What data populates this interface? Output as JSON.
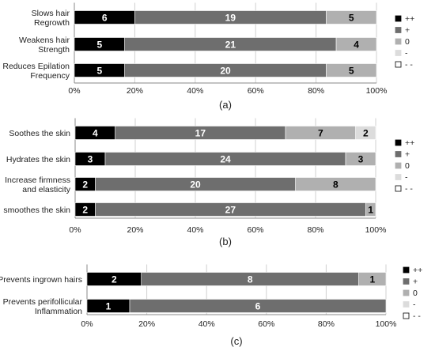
{
  "chart_data": [
    {
      "type": "bar",
      "orientation": "horizontal",
      "stacked": "percent",
      "panel_label": "(a)",
      "categories": [
        [
          "Slows hair",
          "Regrowth"
        ],
        [
          "Weakens hair",
          "Strength"
        ],
        [
          "Reduces Epilation",
          "Frequency"
        ]
      ],
      "series": [
        {
          "name": "++",
          "color": "#000000",
          "values": [
            6,
            5,
            5
          ]
        },
        {
          "name": "+",
          "color": "#6e6e6e",
          "values": [
            19,
            21,
            20
          ]
        },
        {
          "name": "0",
          "color": "#b0b0b0",
          "values": [
            5,
            4,
            5
          ]
        },
        {
          "name": "-",
          "color": "#dcdcdc",
          "values": [
            0,
            0,
            0
          ]
        },
        {
          "name": "- -",
          "color": "#ffffff",
          "values": [
            0,
            0,
            0
          ]
        }
      ],
      "xticks": [
        "0%",
        "20%",
        "40%",
        "60%",
        "80%",
        "100%"
      ],
      "xlim": [
        0,
        100
      ],
      "grid": "vertical",
      "legend": "right"
    },
    {
      "type": "bar",
      "orientation": "horizontal",
      "stacked": "percent",
      "panel_label": "(b)",
      "categories": [
        [
          "Soothes the skin"
        ],
        [
          "Hydrates the skin"
        ],
        [
          "Increase firmness",
          "and elasticity"
        ],
        [
          "smoothes the skin"
        ]
      ],
      "series": [
        {
          "name": "++",
          "color": "#000000",
          "values": [
            4,
            3,
            2,
            2
          ]
        },
        {
          "name": "+",
          "color": "#6e6e6e",
          "values": [
            17,
            24,
            20,
            27
          ]
        },
        {
          "name": "0",
          "color": "#b0b0b0",
          "values": [
            7,
            3,
            8,
            1
          ]
        },
        {
          "name": "-",
          "color": "#dcdcdc",
          "values": [
            2,
            0,
            0,
            0
          ]
        },
        {
          "name": "- -",
          "color": "#ffffff",
          "values": [
            0,
            0,
            0,
            0
          ]
        }
      ],
      "xticks": [
        "0%",
        "20%",
        "40%",
        "60%",
        "80%",
        "100%"
      ],
      "xlim": [
        0,
        100
      ],
      "grid": "vertical",
      "legend": "right"
    },
    {
      "type": "bar",
      "orientation": "horizontal",
      "stacked": "percent",
      "panel_label": "(c)",
      "categories": [
        [
          "Prevents ingrown hairs"
        ],
        [
          "Prevents perifollicular",
          "Inflammation"
        ]
      ],
      "series": [
        {
          "name": "++",
          "color": "#000000",
          "values": [
            2,
            1
          ]
        },
        {
          "name": "+",
          "color": "#6e6e6e",
          "values": [
            8,
            6
          ]
        },
        {
          "name": "0",
          "color": "#b0b0b0",
          "values": [
            1,
            0
          ]
        },
        {
          "name": "-",
          "color": "#dcdcdc",
          "values": [
            0,
            0
          ]
        },
        {
          "name": "- -",
          "color": "#ffffff",
          "values": [
            0,
            0
          ]
        }
      ],
      "xticks": [
        "0%",
        "20%",
        "40%",
        "60%",
        "80%",
        "100%"
      ],
      "xlim": [
        0,
        100
      ],
      "grid": "vertical",
      "legend": "right"
    }
  ]
}
